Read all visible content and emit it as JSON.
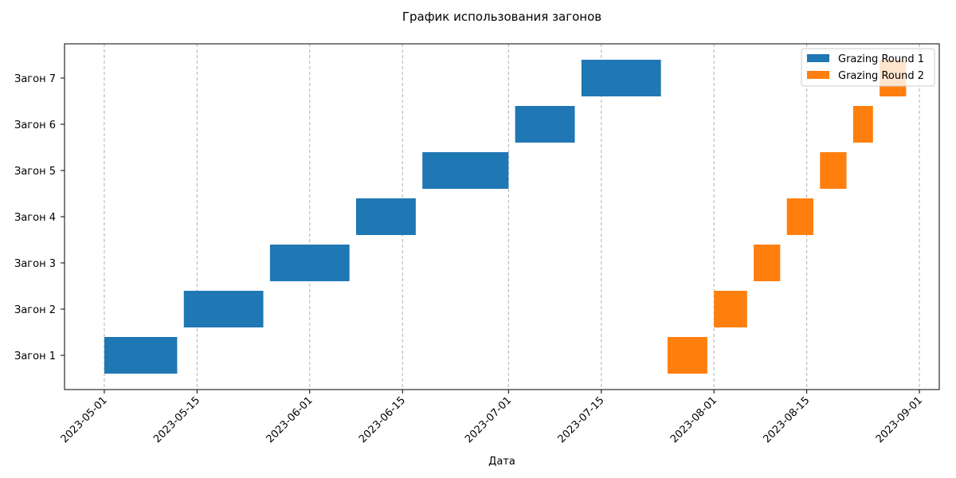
{
  "chart_data": {
    "type": "bar",
    "orientation": "horizontal-gantt",
    "title": "График использования загонов",
    "xlabel": "Дата",
    "ylabel": "",
    "categories": [
      "Загон 1",
      "Загон 2",
      "Загон 3",
      "Загон 4",
      "Загон 5",
      "Загон 6",
      "Загон 7"
    ],
    "x_ticks": [
      "2023-05-01",
      "2023-05-15",
      "2023-06-01",
      "2023-06-15",
      "2023-07-01",
      "2023-07-15",
      "2023-08-01",
      "2023-08-15",
      "2023-09-01"
    ],
    "xlim": [
      "2023-04-25",
      "2023-09-04"
    ],
    "grid": "x-dashed",
    "legend_position": "top-right",
    "series": [
      {
        "name": "Grazing Round 1",
        "color": "#1f77b4",
        "intervals": [
          {
            "start": "2023-05-01",
            "end": "2023-05-12"
          },
          {
            "start": "2023-05-13",
            "end": "2023-05-25"
          },
          {
            "start": "2023-05-26",
            "end": "2023-06-07"
          },
          {
            "start": "2023-06-08",
            "end": "2023-06-17"
          },
          {
            "start": "2023-06-18",
            "end": "2023-07-01"
          },
          {
            "start": "2023-07-02",
            "end": "2023-07-11"
          },
          {
            "start": "2023-07-12",
            "end": "2023-07-24"
          }
        ]
      },
      {
        "name": "Grazing Round 2",
        "color": "#ff7f0e",
        "intervals": [
          {
            "start": "2023-07-25",
            "end": "2023-07-31"
          },
          {
            "start": "2023-08-01",
            "end": "2023-08-06"
          },
          {
            "start": "2023-08-07",
            "end": "2023-08-11"
          },
          {
            "start": "2023-08-12",
            "end": "2023-08-16"
          },
          {
            "start": "2023-08-17",
            "end": "2023-08-21"
          },
          {
            "start": "2023-08-22",
            "end": "2023-08-25"
          },
          {
            "start": "2023-08-26",
            "end": "2023-08-30"
          }
        ]
      }
    ]
  }
}
